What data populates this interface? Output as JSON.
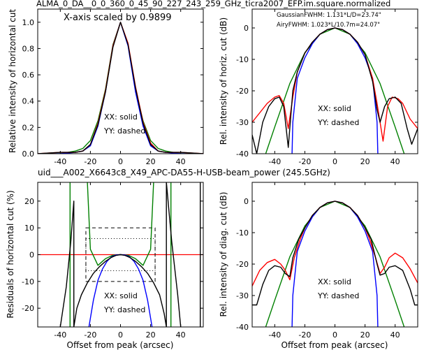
{
  "figure": {
    "top_title": "ALMA_0_DA__0_0_360_0_45_90_227_243_259_GHz_ticra2007_EFP.im.square.normalized",
    "mid_title": "uid___A002_X6643c8_X49_APC-DA55-H-USB-beam_power (245.5GHz)",
    "mid_title_color": "#ff0000"
  },
  "chart_data": [
    {
      "type": "line",
      "title": "",
      "annotation": "X-axis scaled by 0.9899",
      "xlabel": "",
      "ylabel": "Relative intensity of horizontal cut",
      "xlim": [
        -55,
        55
      ],
      "ylim": [
        0,
        1.1
      ],
      "xticks": [
        -40,
        -20,
        0,
        20,
        40
      ],
      "yticks": [
        0.0,
        0.2,
        0.4,
        0.6,
        0.8,
        1.0
      ],
      "legend_text": [
        "XX: solid",
        "YY: dashed"
      ],
      "series": [
        {
          "color": "#008000",
          "style": "solid",
          "x": [
            -55,
            -40,
            -30,
            -25,
            -20,
            -15,
            -10,
            -5,
            0,
            5,
            10,
            15,
            20,
            25,
            30,
            40,
            55
          ],
          "y": [
            0,
            0,
            0.02,
            0.04,
            0.1,
            0.25,
            0.49,
            0.83,
            1.0,
            0.83,
            0.49,
            0.25,
            0.1,
            0.04,
            0.02,
            0,
            0
          ]
        },
        {
          "color": "#0000ff",
          "style": "solid",
          "x": [
            -55,
            -40,
            -30,
            -25,
            -20,
            -15,
            -10,
            -5,
            0,
            5,
            10,
            15,
            20,
            25,
            30,
            40,
            55
          ],
          "y": [
            0,
            0,
            0.01,
            0.02,
            0.06,
            0.21,
            0.47,
            0.82,
            1.0,
            0.82,
            0.47,
            0.21,
            0.06,
            0.02,
            0.01,
            0,
            0
          ]
        },
        {
          "color": "#ff0000",
          "style": "solid",
          "x": [
            -55,
            -40,
            -30,
            -25,
            -20,
            -15,
            -10,
            -5,
            0,
            5,
            10,
            15,
            20,
            25,
            30,
            40,
            55
          ],
          "y": [
            0,
            0.01,
            0.01,
            0.02,
            0.07,
            0.23,
            0.48,
            0.82,
            1.0,
            0.84,
            0.51,
            0.24,
            0.08,
            0.02,
            0.01,
            0.01,
            0
          ]
        },
        {
          "color": "#000000",
          "style": "solid",
          "x": [
            -55,
            -40,
            -30,
            -25,
            -20,
            -15,
            -10,
            -5,
            0,
            5,
            10,
            15,
            20,
            25,
            30,
            40,
            55
          ],
          "y": [
            0,
            0.01,
            0.01,
            0.02,
            0.07,
            0.22,
            0.47,
            0.81,
            1.0,
            0.83,
            0.5,
            0.23,
            0.07,
            0.02,
            0.01,
            0.01,
            0
          ]
        }
      ]
    },
    {
      "type": "line",
      "title": "",
      "annotation_lines": [
        "GaussianFWHM: 1.131*L/D=23.74\"",
        "AiryFWHM: 1.023*L/10.7m=24.07\""
      ],
      "annotation_colors": [
        "#008000",
        "#0000ff"
      ],
      "xlabel": "",
      "ylabel": "Rel. intensity of horiz. cut (dB)",
      "xlim": [
        -55,
        55
      ],
      "ylim": [
        -40,
        6
      ],
      "xticks": [
        -40,
        -20,
        0,
        20,
        40
      ],
      "yticks": [
        0,
        -10,
        -20,
        -30,
        -40
      ],
      "legend_text": [
        "XX: solid",
        "YY: dashed"
      ],
      "series": [
        {
          "color": "#008000",
          "style": "solid",
          "x": [
            -46,
            -40,
            -30,
            -20,
            -10,
            0,
            10,
            20,
            30,
            40,
            46
          ],
          "y": [
            -40,
            -31.5,
            -17.7,
            -7.9,
            -2,
            0,
            -2,
            -7.9,
            -17.7,
            -31.5,
            -40
          ]
        },
        {
          "color": "#0000ff",
          "style": "solid",
          "x": [
            -28.5,
            -28,
            -25,
            -20,
            -15,
            -10,
            -5,
            0,
            5,
            10,
            15,
            20,
            25,
            28,
            28.5
          ],
          "y": [
            -40,
            -30,
            -16,
            -9.5,
            -5,
            -2,
            -0.5,
            0,
            -0.5,
            -2,
            -5,
            -9.5,
            -16,
            -30,
            -40
          ]
        },
        {
          "color": "#ff0000",
          "style": "solid",
          "x": [
            -55,
            -50,
            -45,
            -40,
            -37,
            -34,
            -31,
            -28,
            -25,
            -20,
            -15,
            -10,
            -5,
            0,
            5,
            10,
            15,
            20,
            25,
            28,
            30,
            32,
            35,
            38,
            42,
            45,
            50,
            55
          ],
          "y": [
            -30,
            -27,
            -24,
            -22,
            -21.5,
            -24,
            -32,
            -22,
            -14,
            -8,
            -4.5,
            -2,
            -0.5,
            0,
            -0.5,
            -2,
            -4.5,
            -8.5,
            -16,
            -24,
            -30,
            -36,
            -25,
            -22,
            -22.5,
            -24,
            -29,
            -32
          ]
        },
        {
          "color": "#000000",
          "style": "solid",
          "x": [
            -55,
            -52,
            -48,
            -44,
            -40,
            -37,
            -34,
            -31,
            -28,
            -25,
            -20,
            -15,
            -10,
            -5,
            0,
            5,
            10,
            15,
            20,
            25,
            28,
            30,
            33,
            36,
            40,
            44,
            48,
            51,
            55
          ],
          "y": [
            -34,
            -40,
            -30,
            -25,
            -22.5,
            -22,
            -25,
            -38,
            -20,
            -14,
            -8,
            -4.5,
            -2,
            -0.5,
            0,
            -0.5,
            -2,
            -4.5,
            -8.5,
            -17,
            -26,
            -30,
            -25,
            -22.5,
            -22,
            -24,
            -32,
            -37,
            -32
          ]
        }
      ]
    },
    {
      "type": "line",
      "title": "",
      "xlabel": "Offset from peak (arcsec)",
      "ylabel": "Residuals of horizontal cut (%)",
      "xlim": [
        -55,
        55
      ],
      "ylim": [
        -27,
        27
      ],
      "xticks": [
        -40,
        -20,
        0,
        20,
        40
      ],
      "yticks": [
        20,
        10,
        0,
        -10,
        -20
      ],
      "legend_text": [
        "XX: solid",
        "YY: dashed"
      ],
      "hline": {
        "y": 0,
        "color": "#ff0000"
      },
      "dashed_box": {
        "x": [
          -23,
          23
        ],
        "y": [
          -10,
          10
        ]
      },
      "dotted_box": {
        "x": [
          -23,
          23
        ],
        "y": [
          -6,
          6
        ]
      },
      "series": [
        {
          "color": "#008000",
          "style": "solid",
          "x": [
            -22,
            -20,
            -15,
            -10,
            -5,
            0,
            5,
            10,
            15,
            20,
            22
          ],
          "y": [
            27,
            2,
            -4,
            -1.5,
            -0.2,
            0,
            -0.2,
            -1.5,
            -4,
            2,
            27
          ]
        },
        {
          "color": "#008000",
          "style": "solid",
          "x": [
            -33.5,
            -33.5
          ],
          "y": [
            27,
            -27
          ]
        },
        {
          "color": "#008000",
          "style": "solid",
          "x": [
            33.5,
            33.5
          ],
          "y": [
            27,
            -27
          ]
        },
        {
          "color": "#0000ff",
          "style": "solid",
          "x": [
            -21,
            -18,
            -15,
            -12,
            -9,
            -6,
            -3,
            0,
            3,
            6,
            9,
            12,
            15,
            18,
            21
          ],
          "y": [
            -27,
            -17,
            -9.6,
            -5.4,
            -2.5,
            -0.8,
            -0.1,
            0,
            -0.1,
            -0.8,
            -2.5,
            -5.4,
            -9.6,
            -17,
            -27
          ]
        },
        {
          "color": "#000000",
          "style": "solid",
          "x": [
            -40,
            -36,
            -33,
            -31,
            -31,
            -29,
            -26,
            -22,
            -18,
            -14,
            -10,
            -6,
            -3,
            0,
            3,
            6,
            10,
            14,
            18,
            22,
            26,
            29,
            30.5,
            30.5,
            34,
            38,
            40
          ],
          "y": [
            -27,
            -12,
            5,
            20,
            -27,
            -20,
            -15,
            -10.5,
            -7,
            -4.5,
            -2.5,
            -1,
            -0.3,
            0,
            -0.3,
            -1,
            -2.5,
            -4.5,
            -7,
            -10.5,
            -15,
            -22,
            -27,
            27,
            5,
            -15,
            -27
          ]
        },
        {
          "color": "#000000",
          "style": "solid",
          "x": [
            53,
            53
          ],
          "y": [
            27,
            -27
          ]
        }
      ]
    },
    {
      "type": "line",
      "title": "",
      "xlabel": "Offset from peak (arcsec)",
      "ylabel": "Rel. intensity of diag. cut (dB)",
      "xlim": [
        -55,
        55
      ],
      "ylim": [
        -40,
        6
      ],
      "xticks": [
        -40,
        -20,
        0,
        20,
        40
      ],
      "yticks": [
        0,
        -10,
        -20,
        -30,
        -40
      ],
      "legend_text": [
        "XX: solid",
        "YY: dashed"
      ],
      "series": [
        {
          "color": "#008000",
          "style": "solid",
          "x": [
            -46,
            -40,
            -30,
            -20,
            -10,
            0,
            10,
            20,
            30,
            40,
            46
          ],
          "y": [
            -40,
            -31.5,
            -17.7,
            -7.9,
            -2,
            0,
            -2,
            -7.9,
            -17.7,
            -31.5,
            -40
          ]
        },
        {
          "color": "#0000ff",
          "style": "solid",
          "x": [
            -28.5,
            -28,
            -25,
            -20,
            -15,
            -10,
            -5,
            0,
            5,
            10,
            15,
            20,
            25,
            28,
            28.5
          ],
          "y": [
            -40,
            -30,
            -16,
            -9.5,
            -5,
            -2,
            -0.5,
            0,
            -0.5,
            -2,
            -5,
            -9.5,
            -16,
            -30,
            -40
          ]
        },
        {
          "color": "#ff0000",
          "style": "solid",
          "x": [
            -55,
            -50,
            -45,
            -40,
            -36,
            -33,
            -30,
            -27,
            -23,
            -20,
            -15,
            -10,
            -5,
            0,
            5,
            10,
            15,
            20,
            23,
            27,
            30,
            33,
            36,
            40,
            45,
            50,
            55
          ],
          "y": [
            -27,
            -22,
            -19.5,
            -18.5,
            -20,
            -22,
            -25,
            -18,
            -12,
            -8.5,
            -4.5,
            -2,
            -0.5,
            0,
            -0.5,
            -2,
            -4.5,
            -8.5,
            -12,
            -18,
            -23,
            -21,
            -18,
            -16.5,
            -18,
            -21.5,
            -26
          ]
        },
        {
          "color": "#000000",
          "style": "solid",
          "x": [
            -55,
            -52,
            -48,
            -44,
            -40,
            -36,
            -33,
            -30,
            -28,
            -24,
            -20,
            -15,
            -10,
            -5,
            0,
            5,
            10,
            15,
            20,
            24,
            28,
            30,
            33,
            36,
            40,
            45,
            50,
            53,
            55
          ],
          "y": [
            -33,
            -33,
            -26.5,
            -22,
            -20.5,
            -21,
            -23,
            -24,
            -18,
            -12,
            -8.5,
            -4.5,
            -2,
            -0.5,
            0,
            -0.5,
            -2,
            -4.5,
            -8.5,
            -12,
            -20,
            -23.5,
            -23,
            -21,
            -20.5,
            -22,
            -28,
            -33,
            -33
          ]
        }
      ]
    }
  ]
}
